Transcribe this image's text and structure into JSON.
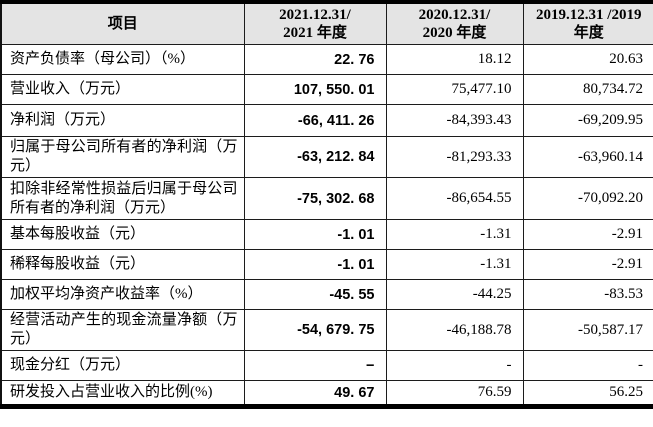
{
  "colors": {
    "header_bg": "#e4e4e4",
    "border": "#000000",
    "text": "#000000"
  },
  "table": {
    "columns": [
      {
        "label": "项目"
      },
      {
        "label": "2021.12.31/\n2021 年度"
      },
      {
        "label": "2020.12.31/\n2020 年度"
      },
      {
        "label": "2019.12.31 /2019\n年度"
      }
    ],
    "rows": [
      {
        "label": "资产负债率（母公司）（%）",
        "v2021": "22. 76",
        "v2020": "18.12",
        "v2019": "20.63"
      },
      {
        "label": "营业收入（万元）",
        "v2021": "107, 550. 01",
        "v2020": "75,477.10",
        "v2019": "80,734.72"
      },
      {
        "label": "净利润（万元）",
        "v2021": "-66, 411. 26",
        "v2020": "-84,393.43",
        "v2019": "-69,209.95"
      },
      {
        "label": "归属于母公司所有者的净利润（万元）",
        "v2021": "-63, 212. 84",
        "v2020": "-81,293.33",
        "v2019": "-63,960.14"
      },
      {
        "label": "扣除非经常性损益后归属于母公司所有者的净利润（万元）",
        "v2021": "-75, 302. 68",
        "v2020": "-86,654.55",
        "v2019": "-70,092.20"
      },
      {
        "label": "基本每股收益（元）",
        "v2021": "-1. 01",
        "v2020": "-1.31",
        "v2019": "-2.91"
      },
      {
        "label": "稀释每股收益（元）",
        "v2021": "-1. 01",
        "v2020": "-1.31",
        "v2019": "-2.91"
      },
      {
        "label": "加权平均净资产收益率（%）",
        "v2021": "-45. 55",
        "v2020": "-44.25",
        "v2019": "-83.53"
      },
      {
        "label": "经营活动产生的现金流量净额（万元）",
        "v2021": "-54, 679. 75",
        "v2020": "-46,188.78",
        "v2019": "-50,587.17"
      },
      {
        "label": "现金分红（万元）",
        "v2021": "−",
        "v2020": "-",
        "v2019": "-"
      },
      {
        "label": "研发投入占营业收入的比例(%)",
        "v2021": "49. 67",
        "v2020": "76.59",
        "v2019": "56.25"
      }
    ]
  }
}
